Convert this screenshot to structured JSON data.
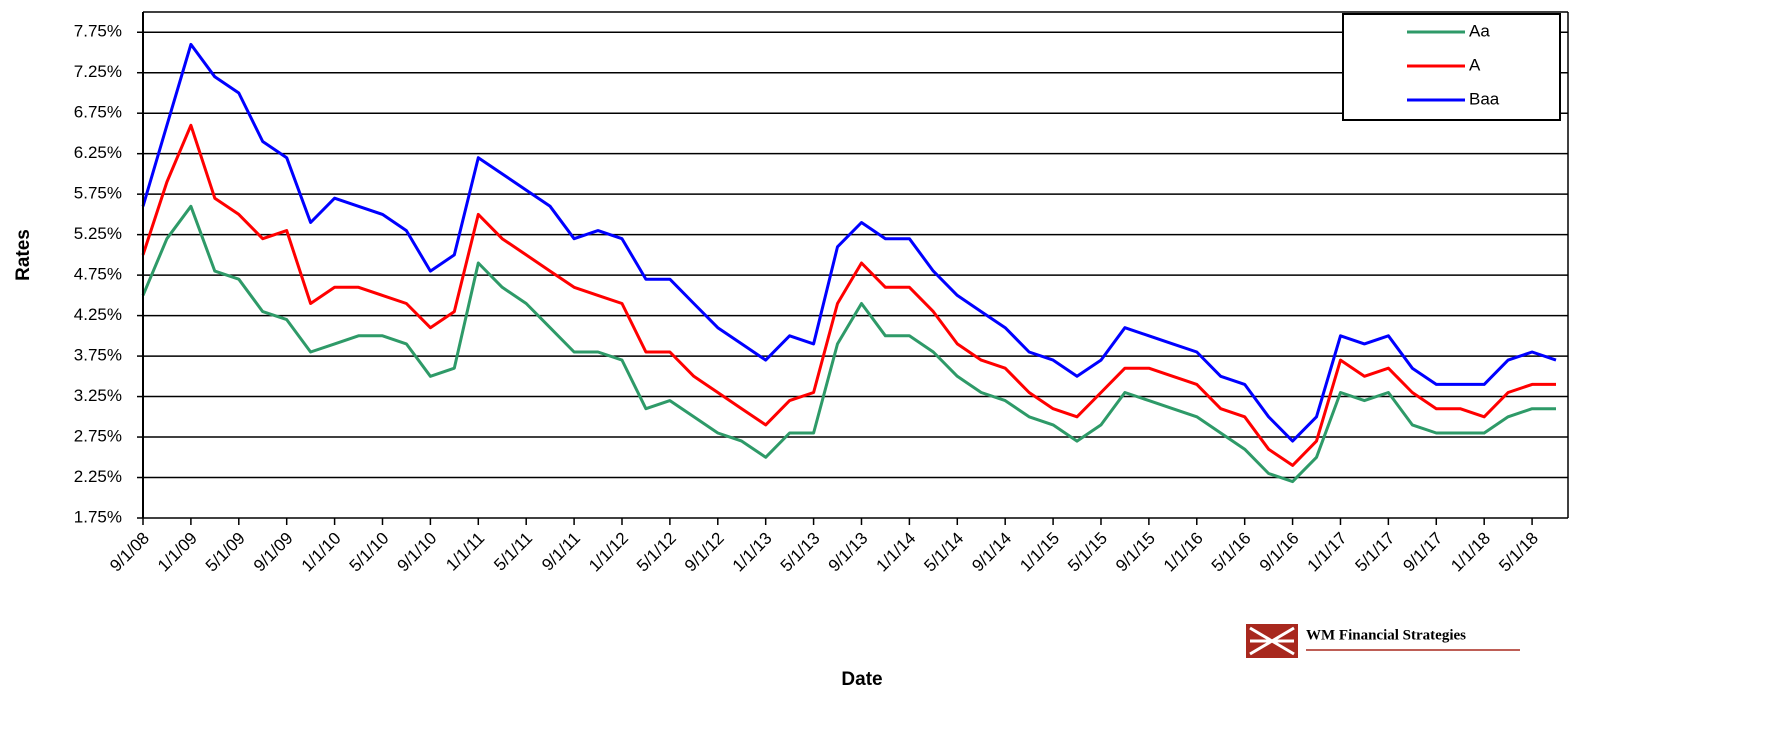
{
  "chart_data": {
    "type": "line",
    "x_label": "Date",
    "y_label": "Rates",
    "watermark": "WM Financial Strategies",
    "x": [
      "9/1/08",
      "11/1/08",
      "1/1/09",
      "3/1/09",
      "5/1/09",
      "7/1/09",
      "9/1/09",
      "11/1/09",
      "1/1/10",
      "3/1/10",
      "5/1/10",
      "7/1/10",
      "9/1/10",
      "11/1/10",
      "1/1/11",
      "3/1/11",
      "5/1/11",
      "7/1/11",
      "9/1/11",
      "11/1/11",
      "1/1/12",
      "3/1/12",
      "5/1/12",
      "7/1/12",
      "9/1/12",
      "11/1/12",
      "1/1/13",
      "3/1/13",
      "5/1/13",
      "7/1/13",
      "9/1/13",
      "11/1/13",
      "1/1/14",
      "3/1/14",
      "5/1/14",
      "7/1/14",
      "9/1/14",
      "11/1/14",
      "1/1/15",
      "3/1/15",
      "5/1/15",
      "7/1/15",
      "9/1/15",
      "11/1/15",
      "1/1/16",
      "3/1/16",
      "5/1/16",
      "7/1/16",
      "9/1/16",
      "11/1/16",
      "1/1/17",
      "3/1/17",
      "5/1/17",
      "7/1/17",
      "9/1/17",
      "11/1/17",
      "1/1/18",
      "3/1/18",
      "5/1/18",
      "7/1/18"
    ],
    "series": [
      {
        "name": "Aa",
        "color": "#2e9a68",
        "values": [
          4.5,
          5.2,
          5.6,
          4.8,
          4.7,
          4.3,
          4.2,
          3.8,
          3.9,
          4.0,
          4.0,
          3.9,
          3.5,
          3.6,
          4.9,
          4.6,
          4.4,
          4.1,
          3.8,
          3.8,
          3.7,
          3.1,
          3.2,
          3.0,
          2.8,
          2.7,
          2.5,
          2.8,
          2.8,
          3.9,
          4.4,
          4.0,
          4.0,
          3.8,
          3.5,
          3.3,
          3.2,
          3.0,
          2.9,
          2.7,
          2.9,
          3.3,
          3.2,
          3.1,
          3.0,
          2.8,
          2.6,
          2.3,
          2.2,
          2.5,
          3.3,
          3.2,
          3.3,
          2.9,
          2.8,
          2.8,
          2.8,
          3.0,
          3.1,
          3.1
        ]
      },
      {
        "name": "A",
        "color": "#ff0000",
        "values": [
          5.0,
          5.9,
          6.6,
          5.7,
          5.5,
          5.2,
          5.3,
          4.4,
          4.6,
          4.6,
          4.5,
          4.4,
          4.1,
          4.3,
          5.5,
          5.2,
          5.0,
          4.8,
          4.6,
          4.5,
          4.4,
          3.8,
          3.8,
          3.5,
          3.3,
          3.1,
          2.9,
          3.2,
          3.3,
          4.4,
          4.9,
          4.6,
          4.6,
          4.3,
          3.9,
          3.7,
          3.6,
          3.3,
          3.1,
          3.0,
          3.3,
          3.6,
          3.6,
          3.5,
          3.4,
          3.1,
          3.0,
          2.6,
          2.4,
          2.7,
          3.7,
          3.5,
          3.6,
          3.3,
          3.1,
          3.1,
          3.0,
          3.3,
          3.4,
          3.4
        ]
      },
      {
        "name": "Baa",
        "color": "#0000ff",
        "values": [
          5.6,
          6.6,
          7.6,
          7.2,
          7.0,
          6.4,
          6.2,
          5.4,
          5.7,
          5.6,
          5.5,
          5.3,
          4.8,
          5.0,
          6.2,
          6.0,
          5.8,
          5.6,
          5.2,
          5.3,
          5.2,
          4.7,
          4.7,
          4.4,
          4.1,
          3.9,
          3.7,
          4.0,
          3.9,
          5.1,
          5.4,
          5.2,
          5.2,
          4.8,
          4.5,
          4.3,
          4.1,
          3.8,
          3.7,
          3.5,
          3.7,
          4.1,
          4.0,
          3.9,
          3.8,
          3.5,
          3.4,
          3.0,
          2.7,
          3.0,
          4.0,
          3.9,
          4.0,
          3.6,
          3.4,
          3.4,
          3.4,
          3.7,
          3.8,
          3.7
        ]
      }
    ],
    "xlim": [
      "9/1/08",
      "8/1/18"
    ],
    "xticks": [
      "9/1/08",
      "1/1/09",
      "5/1/09",
      "9/1/09",
      "1/1/10",
      "5/1/10",
      "9/1/10",
      "1/1/11",
      "5/1/11",
      "9/1/11",
      "1/1/12",
      "5/1/12",
      "9/1/12",
      "1/1/13",
      "5/1/13",
      "9/1/13",
      "1/1/14",
      "5/1/14",
      "9/1/14",
      "1/1/15",
      "5/1/15",
      "9/1/15",
      "1/1/16",
      "5/1/16",
      "9/1/16",
      "1/1/17",
      "5/1/17",
      "9/1/17",
      "1/1/18",
      "5/1/18"
    ],
    "ylim": [
      1.75,
      8
    ],
    "yticks": [
      {
        "value": 1.75,
        "label": "1.75%"
      },
      {
        "value": 2.25,
        "label": "2.25%"
      },
      {
        "value": 2.75,
        "label": "2.75%"
      },
      {
        "value": 3.25,
        "label": "3.25%"
      },
      {
        "value": 3.75,
        "label": "3.75%"
      },
      {
        "value": 4.25,
        "label": "4.25%"
      },
      {
        "value": 4.75,
        "label": "4.75%"
      },
      {
        "value": 5.25,
        "label": "5.25%"
      },
      {
        "value": 5.75,
        "label": "5.75%"
      },
      {
        "value": 6.25,
        "label": "6.25%"
      },
      {
        "value": 6.75,
        "label": "6.75%"
      },
      {
        "value": 7.25,
        "label": "7.25%"
      },
      {
        "value": 7.75,
        "label": "7.75%"
      }
    ],
    "grid": true,
    "legend": "upper right"
  }
}
